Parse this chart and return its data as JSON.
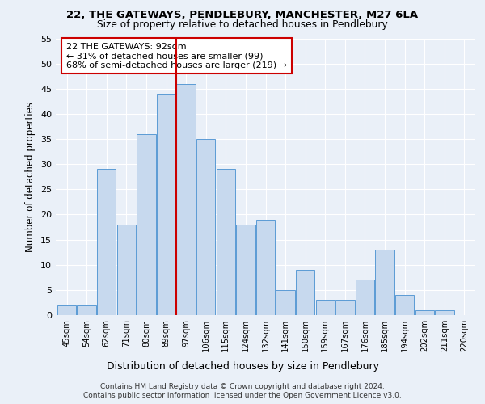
{
  "title1": "22, THE GATEWAYS, PENDLEBURY, MANCHESTER, M27 6LA",
  "title2": "Size of property relative to detached houses in Pendlebury",
  "xlabel": "Distribution of detached houses by size in Pendlebury",
  "ylabel": "Number of detached properties",
  "bar_labels": [
    "45sqm",
    "54sqm",
    "62sqm",
    "71sqm",
    "80sqm",
    "89sqm",
    "97sqm",
    "106sqm",
    "115sqm",
    "124sqm",
    "132sqm",
    "141sqm",
    "150sqm",
    "159sqm",
    "167sqm",
    "176sqm",
    "185sqm",
    "194sqm",
    "202sqm",
    "211sqm",
    "220sqm"
  ],
  "bar_values": [
    2,
    2,
    29,
    18,
    36,
    44,
    46,
    35,
    29,
    18,
    19,
    5,
    9,
    3,
    3,
    7,
    13,
    4,
    1,
    1,
    0
  ],
  "bar_color": "#c7d9ee",
  "bar_edge_color": "#5b9bd5",
  "vline_x": 5.5,
  "vline_color": "#cc0000",
  "annotation_text": "22 THE GATEWAYS: 92sqm\n← 31% of detached houses are smaller (99)\n68% of semi-detached houses are larger (219) →",
  "annotation_box_color": "#ffffff",
  "annotation_box_edge": "#cc0000",
  "ylim": [
    0,
    55
  ],
  "yticks": [
    0,
    5,
    10,
    15,
    20,
    25,
    30,
    35,
    40,
    45,
    50,
    55
  ],
  "footer1": "Contains HM Land Registry data © Crown copyright and database right 2024.",
  "footer2": "Contains public sector information licensed under the Open Government Licence v3.0.",
  "bg_color": "#eaf0f8",
  "plot_bg_color": "#eaf0f8"
}
